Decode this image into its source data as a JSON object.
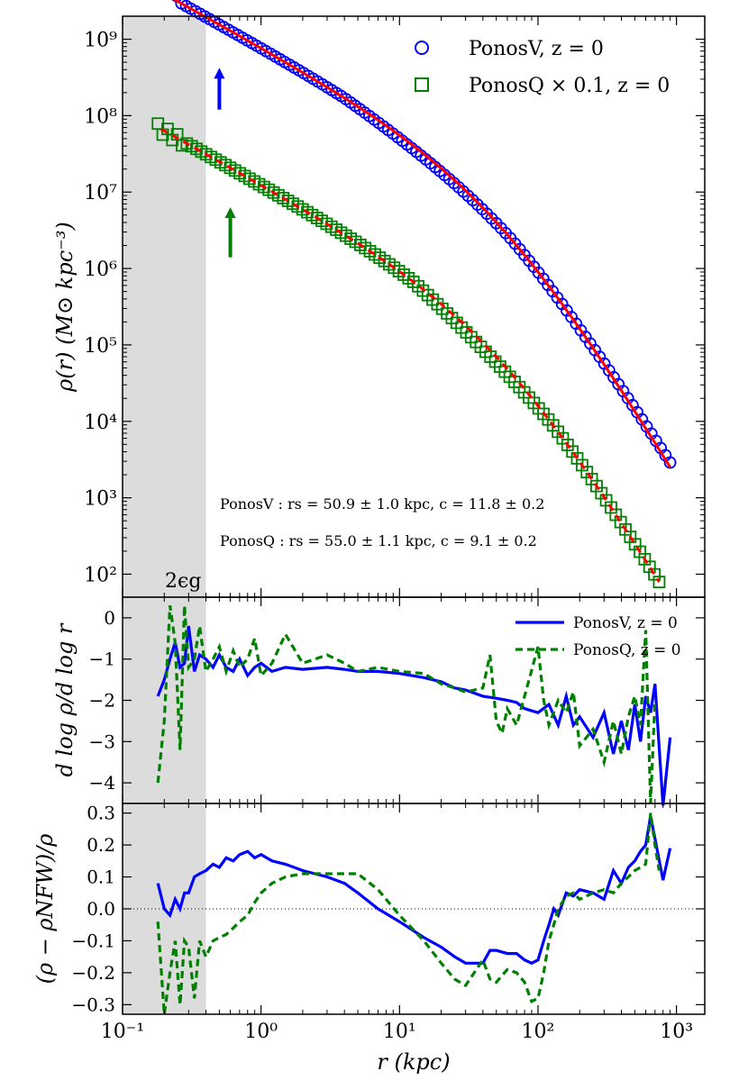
{
  "chart_data": [
    {
      "type": "scatter",
      "panel": "density",
      "xscale": "log",
      "yscale": "log",
      "xlim": [
        0.1,
        1600
      ],
      "ylim": [
        50,
        2000000000
      ],
      "ylabel": "ρ(r) (M⊙ kpc⁻³)",
      "x_ticks": [
        "10⁻¹",
        "10⁰",
        "10¹",
        "10²",
        "10³"
      ],
      "y_ticks": [
        "10²",
        "10³",
        "10⁴",
        "10⁵",
        "10⁶",
        "10⁷",
        "10⁸",
        "10⁹"
      ],
      "shaded_region": {
        "x": [
          0.1,
          0.4
        ],
        "label": "2ϵg"
      },
      "arrows": [
        {
          "series": "PonosV",
          "x": 0.5,
          "y_from": 120000000,
          "y_to": 400000000,
          "color": "#0000ff"
        },
        {
          "series": "PonosQ",
          "x": 0.6,
          "y_from": 1400000,
          "y_to": 6000000,
          "color": "#008000"
        }
      ],
      "series": [
        {
          "name": "PonosV, z = 0",
          "marker": "circle",
          "color": "#0000ff",
          "x_range": [
            0.18,
            900
          ],
          "n_points": 110,
          "fit": {
            "model": "NFW",
            "rs_kpc": 50.9,
            "c": 11.8,
            "color": "#ff0000",
            "style": "solid"
          }
        },
        {
          "name": "PonosQ × 0.1, z = 0",
          "marker": "square",
          "color": "#008000",
          "x_range": [
            0.18,
            750
          ],
          "n_points": 105,
          "fit": {
            "model": "NFW",
            "rs_kpc": 55.0,
            "c": 9.1,
            "color": "#ff0000",
            "style": "dashed"
          }
        }
      ],
      "legend": [
        "PonosV, z = 0",
        "PonosQ × 0.1, z = 0"
      ],
      "annotations": [
        "PonosV :  rs = 50.9 ± 1.0 kpc,  c = 11.8 ± 0.2",
        "PonosQ :  rs = 55.0 ± 1.1 kpc,  c = 9.1 ± 0.2"
      ]
    },
    {
      "type": "line",
      "panel": "slope",
      "xscale": "log",
      "xlim": [
        0.1,
        1600
      ],
      "ylim": [
        -4.5,
        0.5
      ],
      "ylabel": "d log ρ/d log r",
      "y_ticks": [
        0,
        -1,
        -2,
        -3,
        -4
      ],
      "series": [
        {
          "name": "PonosV, z = 0",
          "style": "solid",
          "color": "#0000ff",
          "x": [
            0.18,
            0.2,
            0.22,
            0.24,
            0.26,
            0.28,
            0.3,
            0.33,
            0.36,
            0.4,
            0.45,
            0.5,
            0.56,
            0.63,
            0.7,
            0.8,
            0.9,
            1.0,
            1.2,
            1.5,
            2,
            3,
            4,
            5,
            7,
            10,
            15,
            20,
            25,
            30,
            40,
            50,
            60,
            70,
            80,
            100,
            120,
            140,
            160,
            180,
            200,
            250,
            300,
            350,
            400,
            450,
            500,
            550,
            600,
            650,
            700,
            800,
            900
          ],
          "y": [
            -1.9,
            -1.5,
            -1.0,
            -0.6,
            -1.2,
            -1.1,
            -0.2,
            -1.3,
            -0.9,
            -1.0,
            -1.2,
            -0.9,
            -1.2,
            -1.3,
            -1.0,
            -1.4,
            -1.2,
            -1.1,
            -1.3,
            -1.2,
            -1.25,
            -1.2,
            -1.25,
            -1.3,
            -1.3,
            -1.35,
            -1.45,
            -1.55,
            -1.7,
            -1.75,
            -1.9,
            -1.95,
            -2.0,
            -2.05,
            -2.2,
            -2.3,
            -2.1,
            -2.6,
            -1.9,
            -2.6,
            -2.4,
            -2.9,
            -2.3,
            -3.3,
            -2.5,
            -3.2,
            -2.1,
            -3.0,
            -1.9,
            -2.3,
            -1.6,
            -4.6,
            -2.9
          ]
        },
        {
          "name": "PonosQ, z = 0",
          "style": "dashed",
          "color": "#008000",
          "x": [
            0.18,
            0.2,
            0.22,
            0.24,
            0.26,
            0.28,
            0.3,
            0.33,
            0.36,
            0.4,
            0.45,
            0.5,
            0.56,
            0.63,
            0.7,
            0.8,
            0.9,
            1.0,
            1.2,
            1.5,
            2,
            3,
            4,
            5,
            7,
            10,
            15,
            20,
            25,
            30,
            40,
            45,
            50,
            55,
            60,
            70,
            80,
            100,
            110,
            120,
            140,
            160,
            180,
            200,
            250,
            300,
            350,
            400,
            450,
            500,
            550,
            600,
            650,
            700
          ],
          "y": [
            -4.0,
            -2.5,
            0.3,
            -0.6,
            -3.2,
            0.3,
            -1.2,
            -1.0,
            -0.2,
            -1.3,
            -1.0,
            -0.7,
            -1.3,
            -0.8,
            -1.2,
            -1.0,
            -0.5,
            -1.4,
            -1.1,
            -0.4,
            -1.1,
            -0.9,
            -1.1,
            -1.3,
            -1.2,
            -1.3,
            -1.35,
            -1.6,
            -1.7,
            -1.8,
            -1.7,
            -0.9,
            -2.5,
            -2.8,
            -2.2,
            -2.6,
            -1.9,
            -0.7,
            -2.0,
            -2.6,
            -2.0,
            -2.3,
            -1.8,
            -3.1,
            -2.7,
            -3.5,
            -2.5,
            -3.3,
            -2.4,
            -1.9,
            -2.6,
            -0.3,
            -4.5,
            -2.0
          ]
        }
      ],
      "legend": [
        "PonosV, z = 0",
        "PonosQ, z = 0"
      ]
    },
    {
      "type": "line",
      "panel": "residual",
      "xscale": "log",
      "xlim": [
        0.1,
        1600
      ],
      "ylim": [
        -0.33,
        0.33
      ],
      "xlabel": "r (kpc)",
      "ylabel": "(ρ − ρNFW)/ρ",
      "y_ticks": [
        "0.3",
        "0.2",
        "0.1",
        "0.0",
        "−0.1",
        "−0.2",
        "−0.3"
      ],
      "reference_line": {
        "y": 0.0,
        "style": "dotted"
      },
      "series": [
        {
          "name": "PonosV, z = 0",
          "style": "solid",
          "color": "#0000ff",
          "x": [
            0.18,
            0.2,
            0.22,
            0.24,
            0.26,
            0.28,
            0.3,
            0.33,
            0.36,
            0.4,
            0.45,
            0.5,
            0.56,
            0.63,
            0.7,
            0.8,
            0.9,
            1.0,
            1.2,
            1.5,
            2,
            3,
            4,
            5,
            7,
            10,
            15,
            20,
            25,
            30,
            40,
            45,
            50,
            60,
            70,
            80,
            90,
            100,
            110,
            120,
            130,
            140,
            160,
            180,
            200,
            250,
            300,
            350,
            400,
            450,
            500,
            550,
            600,
            650,
            700,
            800,
            900
          ],
          "y": [
            0.08,
            0.0,
            -0.02,
            0.03,
            0.0,
            0.05,
            0.05,
            0.1,
            0.11,
            0.12,
            0.14,
            0.13,
            0.16,
            0.15,
            0.17,
            0.18,
            0.16,
            0.17,
            0.15,
            0.14,
            0.12,
            0.1,
            0.08,
            0.05,
            0.0,
            -0.04,
            -0.09,
            -0.12,
            -0.15,
            -0.17,
            -0.17,
            -0.13,
            -0.13,
            -0.14,
            -0.14,
            -0.16,
            -0.17,
            -0.16,
            -0.1,
            -0.05,
            0.0,
            -0.02,
            0.05,
            0.04,
            0.06,
            0.05,
            0.03,
            0.12,
            0.08,
            0.13,
            0.15,
            0.18,
            0.2,
            0.29,
            0.22,
            0.09,
            0.19
          ]
        },
        {
          "name": "PonosQ, z = 0",
          "style": "dashed",
          "color": "#008000",
          "x": [
            0.18,
            0.2,
            0.22,
            0.24,
            0.26,
            0.28,
            0.3,
            0.33,
            0.36,
            0.4,
            0.45,
            0.5,
            0.56,
            0.63,
            0.7,
            0.8,
            0.9,
            1.0,
            1.2,
            1.5,
            2,
            3,
            4,
            5,
            7,
            10,
            15,
            20,
            25,
            30,
            40,
            45,
            50,
            60,
            70,
            80,
            90,
            100,
            110,
            120,
            130,
            140,
            160,
            180,
            200,
            250,
            300,
            350,
            400,
            450,
            500,
            550,
            600,
            650,
            700,
            750
          ],
          "y": [
            -0.04,
            -0.33,
            -0.2,
            -0.1,
            -0.3,
            -0.1,
            -0.12,
            -0.28,
            -0.1,
            -0.15,
            -0.1,
            -0.09,
            -0.08,
            -0.06,
            -0.04,
            -0.02,
            0.02,
            0.05,
            0.08,
            0.1,
            0.11,
            0.11,
            0.11,
            0.11,
            0.06,
            -0.02,
            -0.1,
            -0.17,
            -0.22,
            -0.24,
            -0.16,
            -0.22,
            -0.23,
            -0.19,
            -0.2,
            -0.23,
            -0.29,
            -0.28,
            -0.2,
            -0.1,
            -0.05,
            0.0,
            0.04,
            0.05,
            0.03,
            0.05,
            0.06,
            0.05,
            0.08,
            0.1,
            0.12,
            0.13,
            0.14,
            0.3,
            0.2,
            0.12
          ]
        }
      ]
    }
  ]
}
